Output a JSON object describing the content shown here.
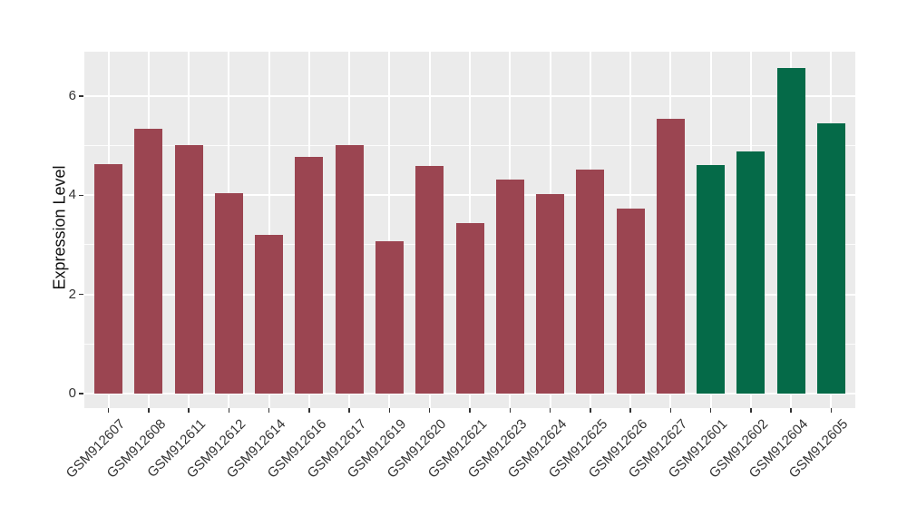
{
  "chart_data": {
    "type": "bar",
    "title": "",
    "xlabel": "",
    "ylabel": "Expression Level",
    "categories": [
      "GSM912607",
      "GSM912608",
      "GSM912611",
      "GSM912612",
      "GSM912614",
      "GSM912616",
      "GSM912617",
      "GSM912619",
      "GSM912620",
      "GSM912621",
      "GSM912623",
      "GSM912624",
      "GSM912625",
      "GSM912626",
      "GSM912627",
      "GSM912601",
      "GSM912602",
      "GSM912604",
      "GSM912605"
    ],
    "values": [
      4.62,
      5.34,
      5.02,
      4.05,
      3.21,
      4.78,
      5.01,
      3.08,
      4.6,
      3.43,
      4.31,
      4.02,
      4.51,
      3.74,
      5.55,
      4.61,
      4.88,
      6.57,
      5.46
    ],
    "bar_group": [
      0,
      0,
      0,
      0,
      0,
      0,
      0,
      0,
      0,
      0,
      0,
      0,
      0,
      0,
      0,
      1,
      1,
      1,
      1
    ],
    "group_colors": [
      "#9B4551",
      "#056A48"
    ],
    "ylim": [
      0,
      6.9
    ],
    "yticks_major": [
      0,
      2,
      4,
      6
    ],
    "yticks_minor": [
      1,
      3,
      5
    ],
    "grid": "on",
    "legend": "none",
    "plot_background": "#EBEBEB",
    "gridline_color": "#FFFFFF",
    "axis_text_color": "#333333",
    "bar_width_ratio": 0.7
  }
}
